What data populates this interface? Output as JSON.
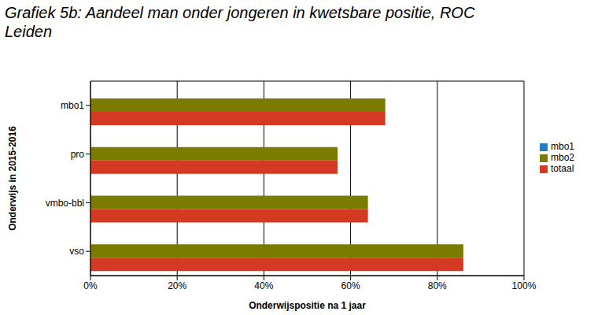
{
  "chart_data": {
    "type": "bar",
    "title": "Grafiek 5b: Aandeel man onder jongeren in kwetsbare positie, ROC Leiden",
    "orientation": "horizontal",
    "categories": [
      "mbo1",
      "pro",
      "vmbo-bbl",
      "vso"
    ],
    "series": [
      {
        "name": "mbo1",
        "color": "#1f7fbf",
        "values": [
          null,
          null,
          null,
          null
        ]
      },
      {
        "name": "mbo2",
        "color": "#7b7b00",
        "values": [
          68,
          57,
          64,
          86
        ]
      },
      {
        "name": "totaal",
        "color": "#d43a23",
        "values": [
          68,
          57,
          64,
          86
        ]
      }
    ],
    "x_label": "Onderwijspositie na 1 jaar",
    "y_label": "Onderwijs in 2015-2016",
    "xlim": [
      0,
      100
    ],
    "xticks": [
      {
        "value": 0,
        "label": "0%"
      },
      {
        "value": 20,
        "label": "20%"
      },
      {
        "value": 40,
        "label": "40%"
      },
      {
        "value": 60,
        "label": "60%"
      },
      {
        "value": 80,
        "label": "80%"
      },
      {
        "value": 100,
        "label": "100%"
      }
    ],
    "grid": true,
    "legend": "right"
  }
}
